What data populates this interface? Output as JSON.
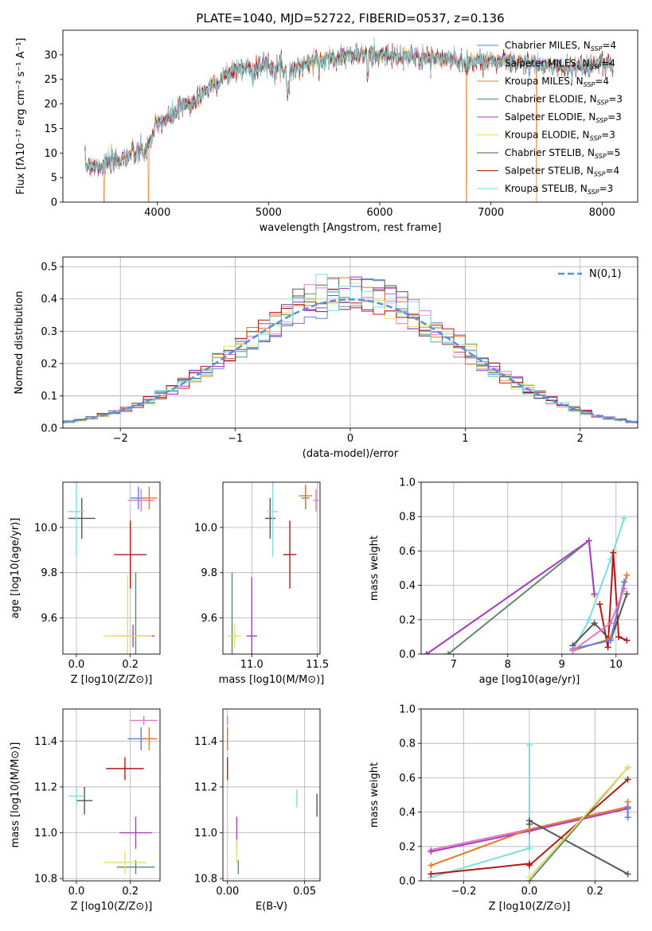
{
  "colors": {
    "chabrier_miles": "#5b7ee3",
    "salpeter_miles": "#e377c2",
    "kroupa_miles": "#e8781f",
    "chabrier_elodie": "#5f8a6a",
    "salpeter_elodie": "#a43cc4",
    "kroupa_elodie": "#e3e065",
    "chabrier_stelib": "#555555",
    "salpeter_stelib": "#b01818",
    "kroupa_stelib": "#7fdcdc",
    "gaussian": "#5b8fdc"
  },
  "chart_data": [
    {
      "type": "line",
      "title": "PLATE=1040, MJD=52722, FIBERID=0537, z=0.136",
      "xlabel": "wavelength [Angstrom, rest frame]",
      "ylabel": "Flux [fλ10⁻¹⁷ erg cm⁻² s⁻¹ A⁻¹]",
      "xlim": [
        3150,
        8320
      ],
      "ylim": [
        0,
        35
      ],
      "xticks": [
        4000,
        5000,
        6000,
        7000,
        8000
      ],
      "yticks": [
        0,
        5,
        10,
        15,
        20,
        25,
        30
      ],
      "grid": false,
      "legend": "top-right",
      "continuum": {
        "x": [
          3350,
          3500,
          3700,
          3800,
          3900,
          4000,
          4100,
          4200,
          4350,
          4500,
          4700,
          4850,
          5000,
          5200,
          5400,
          5600,
          5800,
          6000,
          6200,
          6400,
          6600,
          6800,
          7000,
          7200,
          7400,
          7600,
          7800,
          8000,
          8100
        ],
        "y": [
          7.5,
          7.5,
          9,
          10,
          10.5,
          16,
          17,
          19,
          21,
          24,
          27,
          27.5,
          28,
          27,
          28.5,
          29.5,
          30,
          30,
          29.5,
          29.5,
          29,
          28.5,
          29,
          28.5,
          28,
          27.5,
          27.5,
          28.5,
          27.5
        ]
      },
      "series": [
        {
          "name": "Chabrier MILES, N_SSP=4"
        },
        {
          "name": "Salpeter MILES, N_SSP=4"
        },
        {
          "name": "Kroupa MILES, N_SSP=4"
        },
        {
          "name": "Chabrier ELODIE, N_SSP=3"
        },
        {
          "name": "Salpeter ELODIE, N_SSP=3"
        },
        {
          "name": "Kroupa ELODIE, N_SSP=3"
        },
        {
          "name": "Chabrier STELIB, N_SSP=5"
        },
        {
          "name": "Salpeter STELIB, N_SSP=4"
        },
        {
          "name": "Kroupa STELIB, N_SSP=3"
        }
      ],
      "edge_drops": [
        {
          "x": 3520,
          "color": "kroupa_miles"
        },
        {
          "x": 3920,
          "color": "kroupa_miles"
        },
        {
          "x": 6780,
          "color": "kroupa_miles"
        },
        {
          "x": 7410,
          "color": "kroupa_miles"
        }
      ]
    },
    {
      "type": "histogram",
      "xlabel": "(data-model)/error",
      "ylabel": "Normed distribution",
      "xlim": [
        -2.5,
        2.5
      ],
      "ylim": [
        0,
        0.53
      ],
      "xticks": [
        -2,
        -1,
        0,
        1,
        2
      ],
      "yticks": [
        0.0,
        0.1,
        0.2,
        0.3,
        0.4,
        0.5
      ],
      "grid": true,
      "legend": "top-right",
      "gaussian_label": "N(0,1)",
      "bin_width": 0.1
    },
    {
      "type": "scatter",
      "xlabel": "Z [log10(Z/Z⊙)]",
      "ylabel": "age  [log10(age/yr)]",
      "xlim": [
        -0.05,
        0.31
      ],
      "ylim": [
        9.44,
        10.2
      ],
      "xticks": [
        0.0,
        0.2
      ],
      "yticks": [
        9.6,
        9.8,
        10.0
      ],
      "grid": true,
      "points": [
        {
          "x": 0.23,
          "y": 10.13,
          "ex": 0.03,
          "ey": 0.05,
          "color": "chabrier_miles"
        },
        {
          "x": 0.24,
          "y": 10.12,
          "ex": 0.05,
          "ey": 0.05,
          "color": "salpeter_miles"
        },
        {
          "x": 0.27,
          "y": 10.13,
          "ex": 0.03,
          "ey": 0.05,
          "color": "kroupa_miles"
        },
        {
          "x": 0.22,
          "y": 9.52,
          "ex": 0.06,
          "ey": 0.28,
          "color": "chabrier_elodie"
        },
        {
          "x": 0.21,
          "y": 9.52,
          "ex": 0.08,
          "ey": 0.05,
          "color": "salpeter_elodie"
        },
        {
          "x": 0.19,
          "y": 9.52,
          "ex": 0.09,
          "ey": 0.27,
          "color": "kroupa_elodie"
        },
        {
          "x": 0.02,
          "y": 10.04,
          "ex": 0.05,
          "ey": 0.09,
          "color": "chabrier_stelib"
        },
        {
          "x": 0.2,
          "y": 9.88,
          "ex": 0.06,
          "ey": 0.15,
          "color": "salpeter_stelib"
        },
        {
          "x": 0.0,
          "y": 10.07,
          "ex": 0.03,
          "ey": 0.2,
          "color": "kroupa_stelib"
        }
      ]
    },
    {
      "type": "scatter",
      "xlabel": "mass [log10(M/M⊙)]",
      "ylabel": "",
      "xlim": [
        10.78,
        11.52
      ],
      "ylim": [
        9.44,
        10.2
      ],
      "xticks": [
        11.0,
        11.5
      ],
      "yticks": [
        9.6,
        9.8,
        10.0
      ],
      "grid": true,
      "points": [
        {
          "x": 11.41,
          "y": 10.13,
          "ex": 0.03,
          "ey": 0.05,
          "color": "chabrier_miles"
        },
        {
          "x": 11.49,
          "y": 10.12,
          "ex": 0.02,
          "ey": 0.05,
          "color": "salpeter_miles"
        },
        {
          "x": 11.41,
          "y": 10.14,
          "ex": 0.05,
          "ey": 0.05,
          "color": "kroupa_miles"
        },
        {
          "x": 10.85,
          "y": 9.52,
          "ex": 0.03,
          "ey": 0.28,
          "color": "chabrier_elodie"
        },
        {
          "x": 11.0,
          "y": 9.52,
          "ex": 0.04,
          "ey": 0.26,
          "color": "salpeter_elodie"
        },
        {
          "x": 10.87,
          "y": 9.52,
          "ex": 0.05,
          "ey": 0.05,
          "color": "kroupa_elodie"
        },
        {
          "x": 11.14,
          "y": 10.04,
          "ex": 0.04,
          "ey": 0.09,
          "color": "chabrier_stelib"
        },
        {
          "x": 11.29,
          "y": 9.88,
          "ex": 0.05,
          "ey": 0.15,
          "color": "salpeter_stelib"
        },
        {
          "x": 11.16,
          "y": 10.07,
          "ex": 0.04,
          "ey": 0.2,
          "color": "kroupa_stelib"
        }
      ]
    },
    {
      "type": "line",
      "xlabel": "age  [log10(age/yr)]",
      "ylabel": "mass weight",
      "xlim": [
        6.4,
        10.4
      ],
      "ylim": [
        0,
        1
      ],
      "xticks": [
        7,
        8,
        9,
        10
      ],
      "yticks": [
        0.0,
        0.2,
        0.4,
        0.6,
        0.8,
        1.0
      ],
      "grid": true,
      "series": [
        {
          "color": "chabrier_elodie",
          "x": [
            6.9,
            9.5,
            9.6
          ],
          "y": [
            0.0,
            0.66,
            0.34
          ]
        },
        {
          "color": "kroupa_elodie",
          "x": [
            6.5,
            9.5,
            9.6
          ],
          "y": [
            0.0,
            0.66,
            0.34
          ]
        },
        {
          "color": "salpeter_elodie",
          "x": [
            6.5,
            9.5,
            9.6
          ],
          "y": [
            0.0,
            0.66,
            0.35
          ]
        },
        {
          "color": "kroupa_stelib",
          "x": [
            9.2,
            9.5,
            9.9,
            10.15
          ],
          "y": [
            0.02,
            0.2,
            0.55,
            0.79
          ]
        },
        {
          "color": "chabrier_stelib",
          "x": [
            9.2,
            9.6,
            9.9,
            10.2
          ],
          "y": [
            0.05,
            0.18,
            0.08,
            0.35
          ]
        },
        {
          "color": "salpeter_stelib",
          "x": [
            9.7,
            9.85,
            9.95,
            10.05,
            10.2
          ],
          "y": [
            0.29,
            0.04,
            0.59,
            0.1,
            0.08
          ]
        },
        {
          "color": "kroupa_miles",
          "x": [
            9.2,
            9.9,
            10.2
          ],
          "y": [
            0.02,
            0.09,
            0.46
          ]
        },
        {
          "color": "chabrier_miles",
          "x": [
            9.2,
            9.9,
            10.15
          ],
          "y": [
            0.03,
            0.08,
            0.42
          ]
        },
        {
          "color": "salpeter_miles",
          "x": [
            9.2,
            9.9,
            10.15
          ],
          "y": [
            0.02,
            0.18,
            0.38
          ]
        }
      ]
    },
    {
      "type": "scatter",
      "xlabel": "Z [log10(Z/Z⊙)]",
      "ylabel": "mass [log10(M/M⊙)]",
      "xlim": [
        -0.05,
        0.31
      ],
      "ylim": [
        10.79,
        11.54
      ],
      "xticks": [
        0.0,
        0.2
      ],
      "yticks": [
        10.8,
        11.0,
        11.2,
        11.4
      ],
      "grid": true,
      "points": [
        {
          "x": 0.24,
          "y": 11.41,
          "ex": 0.05,
          "ey": 0.05,
          "color": "chabrier_miles"
        },
        {
          "x": 0.25,
          "y": 11.49,
          "ex": 0.05,
          "ey": 0.02,
          "color": "salpeter_miles"
        },
        {
          "x": 0.27,
          "y": 11.41,
          "ex": 0.03,
          "ey": 0.05,
          "color": "kroupa_miles"
        },
        {
          "x": 0.22,
          "y": 10.85,
          "ex": 0.07,
          "ey": 0.03,
          "color": "chabrier_elodie"
        },
        {
          "x": 0.22,
          "y": 11.0,
          "ex": 0.06,
          "ey": 0.07,
          "color": "salpeter_elodie"
        },
        {
          "x": 0.18,
          "y": 10.87,
          "ex": 0.08,
          "ey": 0.05,
          "color": "kroupa_elodie"
        },
        {
          "x": 0.03,
          "y": 11.14,
          "ex": 0.03,
          "ey": 0.06,
          "color": "chabrier_stelib"
        },
        {
          "x": 0.18,
          "y": 11.28,
          "ex": 0.07,
          "ey": 0.05,
          "color": "salpeter_stelib"
        },
        {
          "x": 0.0,
          "y": 11.16,
          "ex": 0.03,
          "ey": 0.04,
          "color": "kroupa_stelib"
        }
      ]
    },
    {
      "type": "scatter",
      "xlabel": "E(B-V)",
      "ylabel": "",
      "xlim": [
        -0.003,
        0.06
      ],
      "ylim": [
        10.79,
        11.54
      ],
      "xticks": [
        0.0,
        0.05
      ],
      "yticks": [
        10.8,
        11.0,
        11.2,
        11.4
      ],
      "grid": true,
      "points": [
        {
          "x": 0.0,
          "y": 11.41,
          "ex": 0,
          "ey": 0.05,
          "color": "chabrier_miles"
        },
        {
          "x": 0.0,
          "y": 11.49,
          "ex": 0,
          "ey": 0.02,
          "color": "salpeter_miles"
        },
        {
          "x": 0.0,
          "y": 11.41,
          "ex": 0,
          "ey": 0.05,
          "color": "kroupa_miles"
        },
        {
          "x": 0.007,
          "y": 10.85,
          "ex": 0,
          "ey": 0.03,
          "color": "chabrier_elodie"
        },
        {
          "x": 0.006,
          "y": 11.0,
          "ex": 0,
          "ey": 0.07,
          "color": "salpeter_elodie"
        },
        {
          "x": 0.006,
          "y": 10.92,
          "ex": 0,
          "ey": 0.05,
          "color": "kroupa_elodie"
        },
        {
          "x": 0.058,
          "y": 11.12,
          "ex": 0,
          "ey": 0.05,
          "color": "chabrier_stelib"
        },
        {
          "x": 0.0,
          "y": 11.28,
          "ex": 0,
          "ey": 0.05,
          "color": "salpeter_stelib"
        },
        {
          "x": 0.045,
          "y": 11.15,
          "ex": 0,
          "ey": 0.04,
          "color": "kroupa_stelib"
        }
      ]
    },
    {
      "type": "line",
      "xlabel": "Z [log10(Z/Z⊙)]",
      "ylabel": "mass weight",
      "xlim": [
        -0.33,
        0.33
      ],
      "ylim": [
        0,
        1
      ],
      "xticks": [
        -0.2,
        0.0,
        0.2
      ],
      "yticks": [
        0.0,
        0.2,
        0.4,
        0.6,
        0.8,
        1.0
      ],
      "grid": true,
      "series": [
        {
          "color": "kroupa_stelib",
          "x": [
            -0.3,
            0.0,
            0.0
          ],
          "y": [
            0.02,
            0.19,
            0.79
          ]
        },
        {
          "color": "salpeter_miles",
          "x": [
            -0.3,
            0.0,
            0.3
          ],
          "y": [
            0.18,
            0.3,
            0.43
          ]
        },
        {
          "color": "salpeter_elodie",
          "x": [
            -0.3,
            0.0,
            0.3
          ],
          "y": [
            0.17,
            0.29,
            0.42
          ]
        },
        {
          "color": "kroupa_miles",
          "x": [
            -0.3,
            0.0,
            0.3,
            0.3
          ],
          "y": [
            0.09,
            0.3,
            0.43,
            0.46
          ]
        },
        {
          "color": "chabrier_miles",
          "x": [
            0.3,
            0.3
          ],
          "y": [
            0.37,
            0.43
          ]
        },
        {
          "color": "chabrier_stelib",
          "x": [
            0.0,
            0.0,
            0.3
          ],
          "y": [
            0.33,
            0.35,
            0.04
          ]
        },
        {
          "color": "salpeter_stelib",
          "x": [
            -0.3,
            0.0,
            0.0,
            0.3
          ],
          "y": [
            0.04,
            0.1,
            0.09,
            0.59
          ]
        },
        {
          "color": "chabrier_elodie",
          "x": [
            0.0,
            0.3
          ],
          "y": [
            0.0,
            0.66
          ]
        },
        {
          "color": "kroupa_elodie",
          "x": [
            0.0,
            0.3
          ],
          "y": [
            0.02,
            0.66
          ]
        }
      ]
    }
  ]
}
